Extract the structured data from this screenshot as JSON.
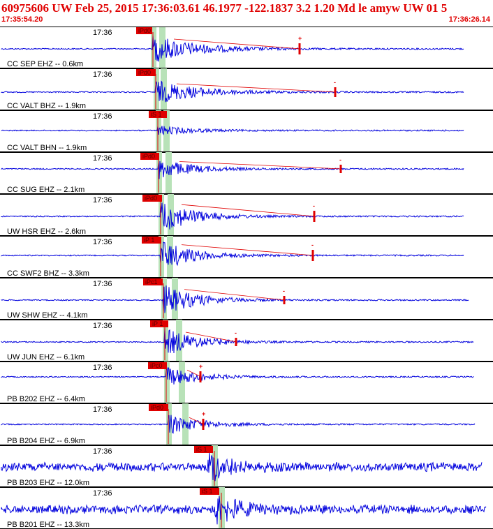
{
  "header": {
    "title": "60975606 UW Feb 25, 2015 17:36:03.61   46.1977 -122.1837  3.2 1.20 Md le amyw UW 01   5",
    "start_time": "17:35:54.20",
    "end_time": "17:36:26.14"
  },
  "colors": {
    "trace": "#0000dd",
    "trace_dark": "#1a1050",
    "pick_red": "#e00000",
    "highlight_green": "#b8e2b8",
    "border": "#000000"
  },
  "traces": [
    {
      "station": "CC SEP EHZ -- 0.6km",
      "time": "17:36",
      "pick": "iPd0",
      "secondary": "+",
      "dark": false,
      "endSec": 29.9
    },
    {
      "station": "CC VALT BHZ -- 1.9km",
      "time": "17:36",
      "pick": "iPd0",
      "secondary": "-",
      "dark": true,
      "endSec": 29.9
    },
    {
      "station": "CC VALT BHN -- 1.9km",
      "time": "17:36",
      "pick": "iS 1",
      "secondary": "",
      "dark": true,
      "endSec": 29.9
    },
    {
      "station": "CC SUG EHZ -- 2.1km",
      "time": "17:36",
      "pick": "iPd0",
      "secondary": "-",
      "dark": false,
      "endSec": 29.9
    },
    {
      "station": "UW HSR EHZ -- 2.6km",
      "time": "17:36",
      "pick": "iPd0",
      "secondary": "-",
      "dark": false,
      "endSec": 30.0
    },
    {
      "station": "CC SWF2 BHZ -- 3.3km",
      "time": "17:36",
      "pick": "iP 1",
      "secondary": "-",
      "dark": true,
      "endSec": 30.0
    },
    {
      "station": "UW SHW EHZ -- 4.1km",
      "time": "17:36",
      "pick": "iPc1",
      "secondary": "-",
      "dark": false,
      "endSec": 30.0
    },
    {
      "station": "UW JUN EHZ -- 6.1km",
      "time": "17:36",
      "pick": "iP 1",
      "secondary": "-",
      "dark": false,
      "endSec": 30.5
    },
    {
      "station": "PB B202 EHZ -- 6.4km",
      "time": "17:36",
      "pick": "iPc0",
      "secondary": "+",
      "dark": false,
      "endSec": 30.5
    },
    {
      "station": "PB B204 EHZ -- 6.9km",
      "time": "17:36",
      "pick": "iPd0",
      "secondary": "+",
      "dark": false,
      "endSec": 30.5
    },
    {
      "station": "PB B203 EHZ -- 12.0km",
      "time": "17:36",
      "pick": "iS 1",
      "secondary": "",
      "dark": false,
      "endSec": 31.9
    },
    {
      "station": "PB B201 EHZ -- 13.3km",
      "time": "17:36",
      "pick": "iS 1",
      "secondary": "",
      "dark": false,
      "endSec": 31.9
    }
  ]
}
